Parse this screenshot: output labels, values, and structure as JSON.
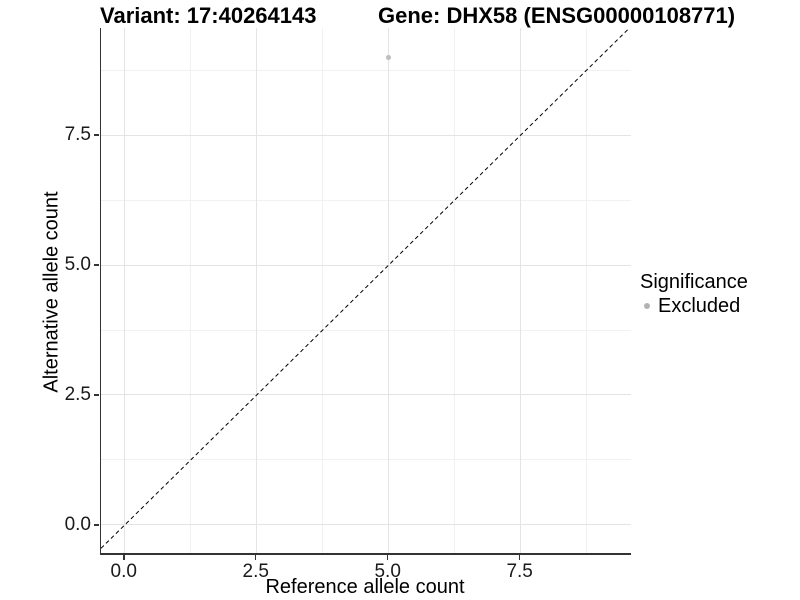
{
  "chart_data": {
    "type": "scatter",
    "title_left": "Variant: 17:40264143",
    "title_right": "Gene: DHX58 (ENSG00000108771)",
    "xlabel": "Reference allele count",
    "ylabel": "Alternative allele count",
    "x_ticks": [
      0.0,
      2.5,
      5.0,
      7.5
    ],
    "y_ticks": [
      0.0,
      2.5,
      5.0,
      7.5
    ],
    "x_minor_ticks": [
      1.25,
      3.75,
      6.25,
      8.75
    ],
    "y_minor_ticks": [
      1.25,
      3.75,
      6.25,
      8.75
    ],
    "xlim": [
      -0.45,
      9.59
    ],
    "ylim": [
      -0.54,
      9.56
    ],
    "grid": "major+minor",
    "tick_label_decimals": 1,
    "points": [
      {
        "x": 5,
        "y": 9,
        "series": "Excluded",
        "color": "#bdbdbd",
        "size": 5
      }
    ],
    "reference_line": {
      "type": "identity",
      "slope": 1,
      "intercept": 0,
      "style": "dashed",
      "color": "#000000"
    },
    "legend": {
      "title": "Significance",
      "position": "right",
      "items": [
        {
          "label": "Excluded",
          "color": "#b3b3b3"
        }
      ]
    }
  },
  "colors": {
    "background": "#ffffff",
    "grid_major": "#e4e4e4",
    "grid_minor": "#f1f1f1",
    "axis_line": "#333333",
    "axis_text": "#1a1a1a",
    "point": "#bdbdbd"
  }
}
